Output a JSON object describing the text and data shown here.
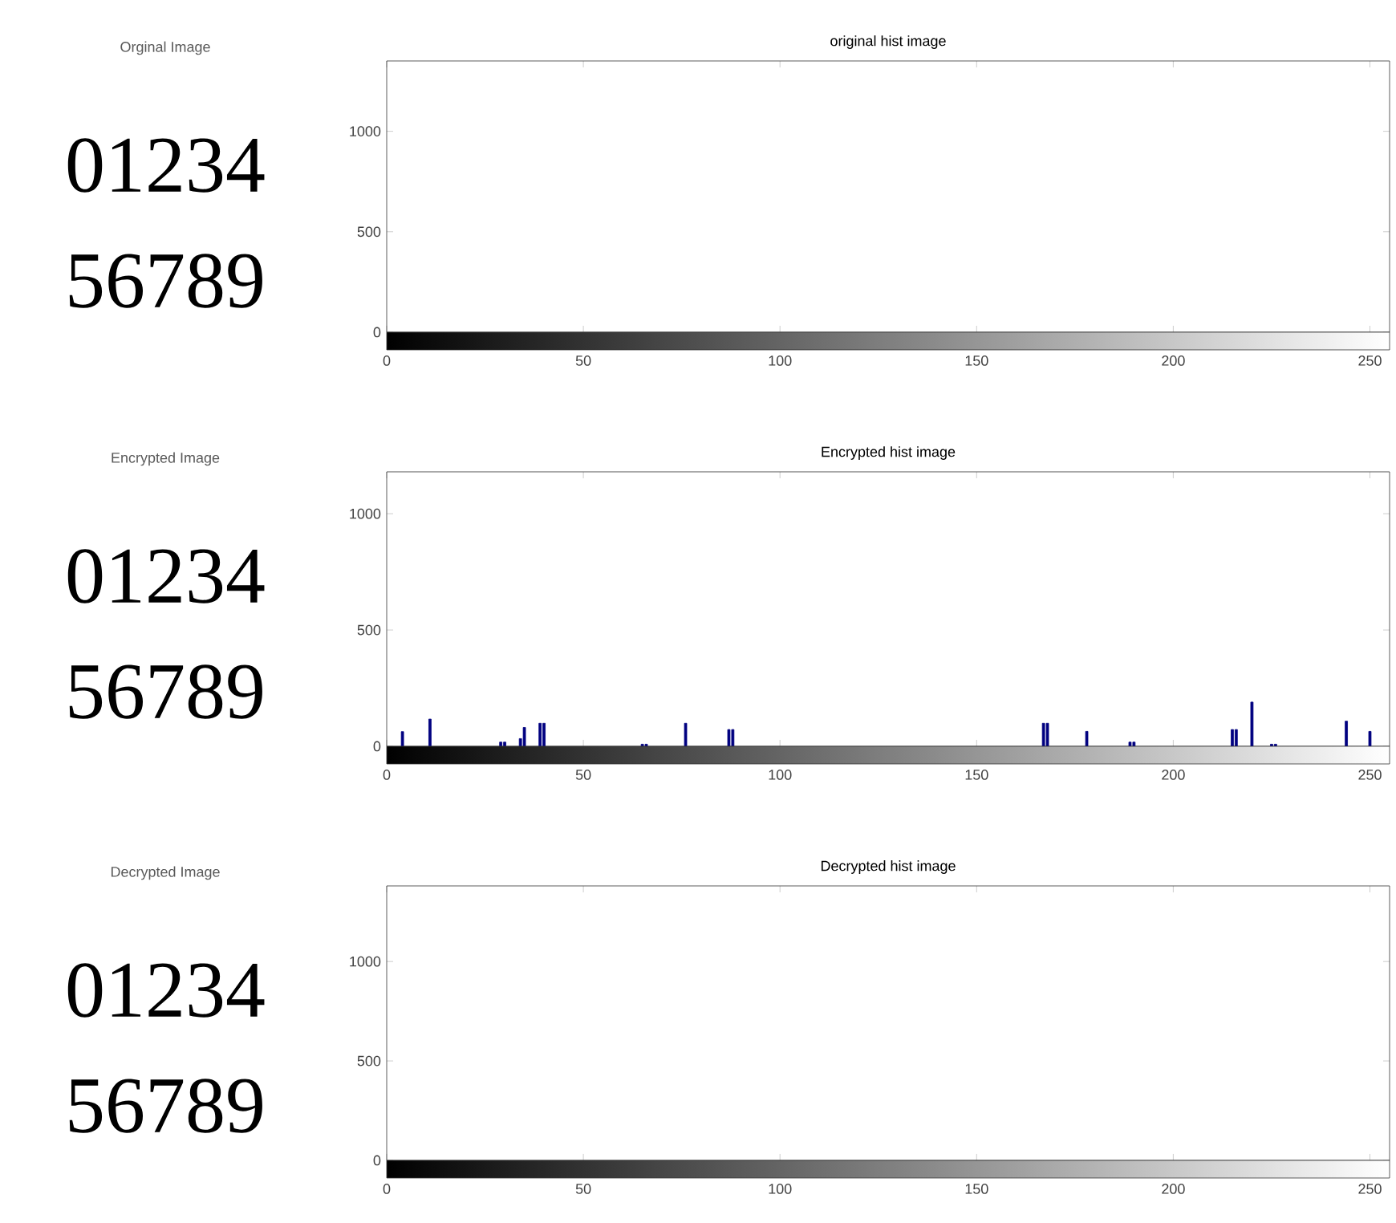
{
  "chart_data": [
    {
      "type": "other",
      "title": "Orginal Image",
      "annotations": [
        "01234",
        "56789"
      ]
    },
    {
      "type": "bar",
      "title": "original hist image",
      "color": "#000080",
      "xlim": [
        0,
        255
      ],
      "xticks": [
        0,
        50,
        100,
        150,
        200,
        250
      ],
      "ylim": [
        0,
        1350
      ],
      "yticks": [
        0,
        500,
        1000
      ]
    },
    {
      "type": "other",
      "title": "Encrypted Image",
      "annotations": [
        "01234",
        "56789"
      ]
    },
    {
      "type": "bar",
      "title": "Encrypted hist image",
      "x": [
        4,
        11,
        29,
        30,
        34,
        35,
        39,
        40,
        65,
        66,
        76,
        87,
        88,
        167,
        168,
        178,
        189,
        190,
        215,
        216,
        220,
        225,
        226,
        244,
        250
      ],
      "values": [
        63,
        117,
        18,
        18,
        33,
        81,
        99,
        99,
        9,
        9,
        99,
        72,
        72,
        99,
        99,
        64,
        18,
        18,
        72,
        72,
        190,
        9,
        9,
        108,
        64
      ],
      "color": "#000080",
      "xlim": [
        0,
        255
      ],
      "xticks": [
        0,
        50,
        100,
        150,
        200,
        250
      ],
      "ylim": [
        0,
        1180
      ],
      "yticks": [
        0,
        500,
        1000
      ]
    },
    {
      "type": "other",
      "title": "Decrypted Image",
      "annotations": [
        "01234",
        "56789"
      ]
    },
    {
      "type": "bar",
      "title": "Decrypted hist image",
      "color": "#000080",
      "xlim": [
        0,
        255
      ],
      "xticks": [
        0,
        50,
        100,
        150,
        200,
        250
      ],
      "ylim": [
        0,
        1380
      ],
      "yticks": [
        0,
        500,
        1000
      ]
    }
  ]
}
